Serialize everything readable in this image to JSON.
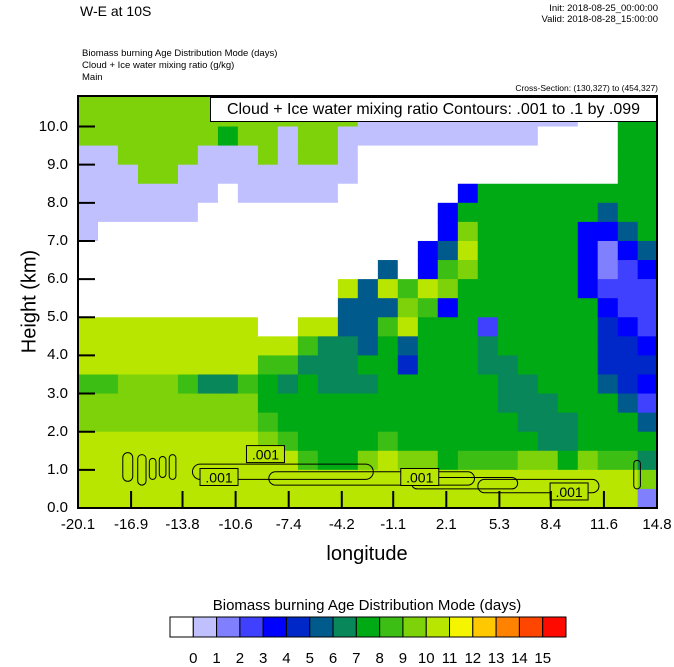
{
  "header": {
    "title": "W-E at 10S",
    "init": "Init: 2018-08-25_00:00:00",
    "valid": "Valid: 2018-08-28_15:00:00",
    "subtitle_lines": [
      "Biomass burning Age Distribution Mode   (days)",
      "Cloud + Ice water mixing ratio   (g/kg)",
      "Main"
    ],
    "cross_section": "Cross-Section: (130,327) to (454,327)"
  },
  "chart_data": {
    "type": "heatmap",
    "xlabel": "longitude",
    "ylabel": "Height (km)",
    "xlim": [
      -20.1,
      14.8
    ],
    "ylim": [
      0,
      10.8
    ],
    "x_ticks": [
      "-20.1",
      "-16.9",
      "-13.8",
      "-10.6",
      "-7.4",
      "-4.2",
      "-1.1",
      "2.1",
      "5.3",
      "8.4",
      "11.6",
      "14.8"
    ],
    "x_tick_values": [
      -20.1,
      -16.9,
      -13.8,
      -10.6,
      -7.4,
      -4.2,
      -1.1,
      2.1,
      5.3,
      8.4,
      11.6,
      14.8
    ],
    "y_ticks": [
      "0.0",
      "1.0",
      "2.0",
      "3.0",
      "4.0",
      "5.0",
      "6.0",
      "7.0",
      "8.0",
      "9.0",
      "10.0"
    ],
    "y_tick_values": [
      0,
      1,
      2,
      3,
      4,
      5,
      6,
      7,
      8,
      9,
      10
    ],
    "colorbar": {
      "title": "Biomass burning Age Distribution Mode  (days)",
      "labels": [
        "0",
        "1",
        "2",
        "3",
        "4",
        "5",
        "6",
        "7",
        "8",
        "9",
        "10",
        "11",
        "12",
        "13",
        "14",
        "15"
      ],
      "colors": [
        "#ffffff",
        "#c0c0ff",
        "#8080ff",
        "#4040ff",
        "#0000ff",
        "#0028c8",
        "#005a8c",
        "#08875a",
        "#00aa14",
        "#3cbe14",
        "#7dd20a",
        "#b9e600",
        "#f5f500",
        "#ffc800",
        "#ff8200",
        "#ff4600",
        "#ff0a00"
      ]
    },
    "x_lon": [
      -19.5,
      -18.29,
      -17.09,
      -15.88,
      -14.68,
      -13.47,
      -12.27,
      -11.06,
      -9.86,
      -8.65,
      -7.45,
      -6.24,
      -5.04,
      -3.83,
      -2.63,
      -1.42,
      -0.22,
      0.99,
      2.19,
      3.4,
      4.6,
      5.81,
      7.01,
      8.22,
      9.42,
      10.63,
      11.83,
      13.04,
      14.24
    ],
    "y_levels_km": [
      10.75,
      10.25,
      9.75,
      9.25,
      8.75,
      8.25,
      7.75,
      7.25,
      6.75,
      6.25,
      5.75,
      5.25,
      4.75,
      4.25,
      3.75,
      3.25,
      2.75,
      2.25,
      1.75,
      1.25,
      0.75,
      0.25
    ],
    "color_class_columns": [
      [
        10,
        10,
        10,
        1,
        1,
        1,
        1,
        1,
        0,
        0,
        0,
        0,
        11,
        11,
        11,
        9,
        10,
        10,
        11,
        11,
        11,
        11
      ],
      [
        10,
        10,
        10,
        1,
        1,
        1,
        1,
        0,
        0,
        0,
        0,
        0,
        11,
        11,
        11,
        9,
        10,
        10,
        11,
        11,
        11,
        11
      ],
      [
        10,
        10,
        10,
        10,
        1,
        1,
        1,
        0,
        0,
        0,
        0,
        0,
        11,
        11,
        11,
        10,
        10,
        10,
        11,
        11,
        11,
        11
      ],
      [
        10,
        10,
        10,
        10,
        10,
        1,
        1,
        0,
        0,
        0,
        0,
        0,
        11,
        11,
        11,
        10,
        10,
        10,
        11,
        11,
        11,
        11
      ],
      [
        10,
        10,
        10,
        10,
        10,
        1,
        1,
        0,
        0,
        0,
        0,
        0,
        11,
        11,
        11,
        10,
        10,
        10,
        11,
        11,
        11,
        11
      ],
      [
        10,
        10,
        10,
        10,
        1,
        1,
        1,
        0,
        0,
        0,
        0,
        0,
        11,
        11,
        11,
        9,
        10,
        10,
        11,
        11,
        11,
        11
      ],
      [
        10,
        10,
        10,
        1,
        1,
        1,
        0,
        0,
        0,
        0,
        0,
        0,
        11,
        11,
        11,
        7,
        10,
        10,
        11,
        11,
        11,
        11
      ],
      [
        10,
        10,
        8,
        1,
        1,
        0,
        0,
        0,
        0,
        0,
        0,
        0,
        11,
        11,
        11,
        7,
        10,
        10,
        11,
        11,
        11,
        11
      ],
      [
        10,
        10,
        10,
        1,
        1,
        1,
        0,
        0,
        0,
        0,
        0,
        0,
        11,
        11,
        11,
        9,
        10,
        10,
        11,
        11,
        11,
        11
      ],
      [
        10,
        10,
        10,
        10,
        1,
        1,
        0,
        0,
        0,
        0,
        0,
        0,
        0,
        11,
        9,
        8,
        8,
        9,
        10,
        11,
        11,
        11
      ],
      [
        10,
        10,
        1,
        1,
        1,
        1,
        0,
        0,
        0,
        0,
        0,
        0,
        0,
        11,
        9,
        7,
        8,
        8,
        9,
        11,
        11,
        11
      ],
      [
        10,
        10,
        10,
        10,
        1,
        1,
        0,
        0,
        0,
        0,
        0,
        0,
        11,
        9,
        7,
        8,
        8,
        8,
        8,
        9,
        11,
        11
      ],
      [
        10,
        10,
        10,
        10,
        1,
        1,
        0,
        0,
        0,
        0,
        0,
        0,
        11,
        7,
        7,
        7,
        8,
        8,
        8,
        8,
        11,
        11
      ],
      [
        10,
        10,
        1,
        1,
        1,
        0,
        0,
        0,
        0,
        0,
        11,
        6,
        6,
        7,
        7,
        7,
        8,
        8,
        8,
        8,
        11,
        11
      ],
      [
        1,
        1,
        1,
        0,
        0,
        0,
        0,
        0,
        0,
        0,
        6,
        6,
        6,
        6,
        8,
        7,
        8,
        8,
        8,
        10,
        11,
        11
      ],
      [
        1,
        1,
        1,
        0,
        0,
        0,
        0,
        0,
        0,
        6,
        11,
        6,
        9,
        8,
        8,
        8,
        8,
        8,
        9,
        11,
        11,
        11
      ],
      [
        1,
        1,
        1,
        0,
        0,
        0,
        0,
        0,
        0,
        0,
        9,
        10,
        11,
        6,
        5,
        8,
        8,
        8,
        8,
        10,
        11,
        11
      ],
      [
        1,
        1,
        1,
        0,
        0,
        0,
        0,
        0,
        4,
        4,
        11,
        9,
        8,
        8,
        8,
        8,
        8,
        8,
        8,
        10,
        11,
        11
      ],
      [
        1,
        1,
        1,
        0,
        0,
        0,
        4,
        4,
        6,
        9,
        10,
        4,
        8,
        8,
        8,
        8,
        8,
        8,
        8,
        8,
        11,
        11
      ],
      [
        1,
        1,
        1,
        0,
        0,
        4,
        8,
        10,
        11,
        10,
        8,
        8,
        8,
        8,
        8,
        8,
        8,
        8,
        8,
        9,
        11,
        11
      ],
      [
        1,
        1,
        1,
        0,
        0,
        8,
        8,
        8,
        8,
        8,
        8,
        8,
        3,
        7,
        7,
        8,
        8,
        8,
        8,
        9,
        11,
        11
      ],
      [
        1,
        1,
        1,
        0,
        0,
        8,
        8,
        8,
        8,
        8,
        8,
        8,
        8,
        8,
        7,
        7,
        7,
        8,
        8,
        9,
        11,
        11
      ],
      [
        1,
        1,
        1,
        0,
        0,
        8,
        8,
        8,
        8,
        8,
        8,
        8,
        8,
        8,
        8,
        7,
        7,
        7,
        8,
        10,
        11,
        11
      ],
      [
        1,
        1,
        0,
        0,
        0,
        8,
        8,
        8,
        8,
        8,
        8,
        8,
        8,
        8,
        8,
        8,
        7,
        7,
        7,
        10,
        11,
        11
      ],
      [
        1,
        1,
        0,
        0,
        0,
        8,
        8,
        8,
        8,
        8,
        8,
        8,
        8,
        8,
        8,
        8,
        8,
        7,
        7,
        8,
        11,
        11
      ],
      [
        1,
        0,
        0,
        0,
        0,
        8,
        8,
        4,
        4,
        4,
        4,
        8,
        8,
        8,
        8,
        8,
        8,
        8,
        8,
        10,
        11,
        11
      ],
      [
        1,
        0,
        0,
        0,
        0,
        8,
        6,
        4,
        2,
        2,
        3,
        4,
        5,
        5,
        5,
        6,
        8,
        8,
        8,
        9,
        11,
        11
      ],
      [
        8,
        8,
        8,
        8,
        8,
        8,
        8,
        6,
        4,
        3,
        3,
        3,
        4,
        5,
        5,
        5,
        6,
        8,
        8,
        9,
        11,
        11
      ],
      [
        8,
        8,
        8,
        8,
        8,
        8,
        8,
        8,
        6,
        4,
        3,
        3,
        3,
        4,
        5,
        4,
        3,
        6,
        8,
        7,
        10,
        2
      ]
    ],
    "contour_legend": "Cloud + Ice water mixing ratio Contours: .001 to .1 by .099",
    "contour_labels": [
      {
        "text": ".001",
        "lon": -11.6,
        "km": 0.8
      },
      {
        "text": ".001",
        "lon": -8.8,
        "km": 1.4
      },
      {
        "text": ".001",
        "lon": 0.5,
        "km": 0.8
      },
      {
        "text": ".001",
        "lon": 9.5,
        "km": 0.42
      }
    ],
    "contours_001": [
      {
        "lon": [
          -13.2,
          -2.3
        ],
        "km": [
          0.75,
          1.15
        ]
      },
      {
        "lon": [
          -8.6,
          3.8
        ],
        "km": [
          0.6,
          0.95
        ]
      },
      {
        "lon": [
          0.0,
          6.4
        ],
        "km": [
          0.5,
          0.8
        ]
      },
      {
        "lon": [
          4.0,
          11.3
        ],
        "km": [
          0.4,
          0.75
        ]
      },
      {
        "lon": [
          -17.4,
          -16.8
        ],
        "km": [
          0.7,
          1.45
        ]
      },
      {
        "lon": [
          -16.5,
          -16.0
        ],
        "km": [
          0.6,
          1.4
        ]
      },
      {
        "lon": [
          -15.8,
          -15.4
        ],
        "km": [
          0.75,
          1.3
        ]
      },
      {
        "lon": [
          -15.2,
          -14.8
        ],
        "km": [
          0.8,
          1.35
        ]
      },
      {
        "lon": [
          -14.6,
          -14.2
        ],
        "km": [
          0.75,
          1.4
        ]
      },
      {
        "lon": [
          13.4,
          13.8
        ],
        "km": [
          0.5,
          1.25
        ]
      }
    ]
  }
}
